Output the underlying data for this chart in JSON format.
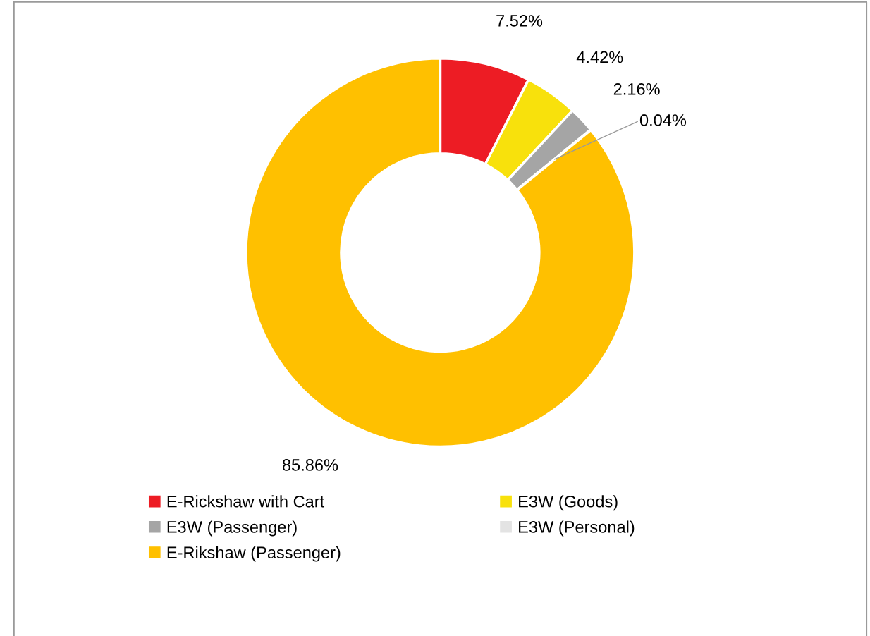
{
  "chart_data": {
    "type": "donut",
    "categories": [
      "E-Rickshaw with Cart",
      "E3W (Goods)",
      "E3W (Passenger)",
      "E3W (Personal)",
      "E-Rikshaw (Passenger)"
    ],
    "values": [
      7.52,
      4.42,
      2.16,
      0.04,
      85.86
    ],
    "colors": [
      "#ed1c24",
      "#f8e10c",
      "#a5a5a5",
      "#e3e3e3",
      "#ffc000"
    ],
    "value_labels": [
      "7.52%",
      "4.42%",
      "2.16%",
      "0.04%",
      "85.86%"
    ],
    "legend": "bottom"
  }
}
